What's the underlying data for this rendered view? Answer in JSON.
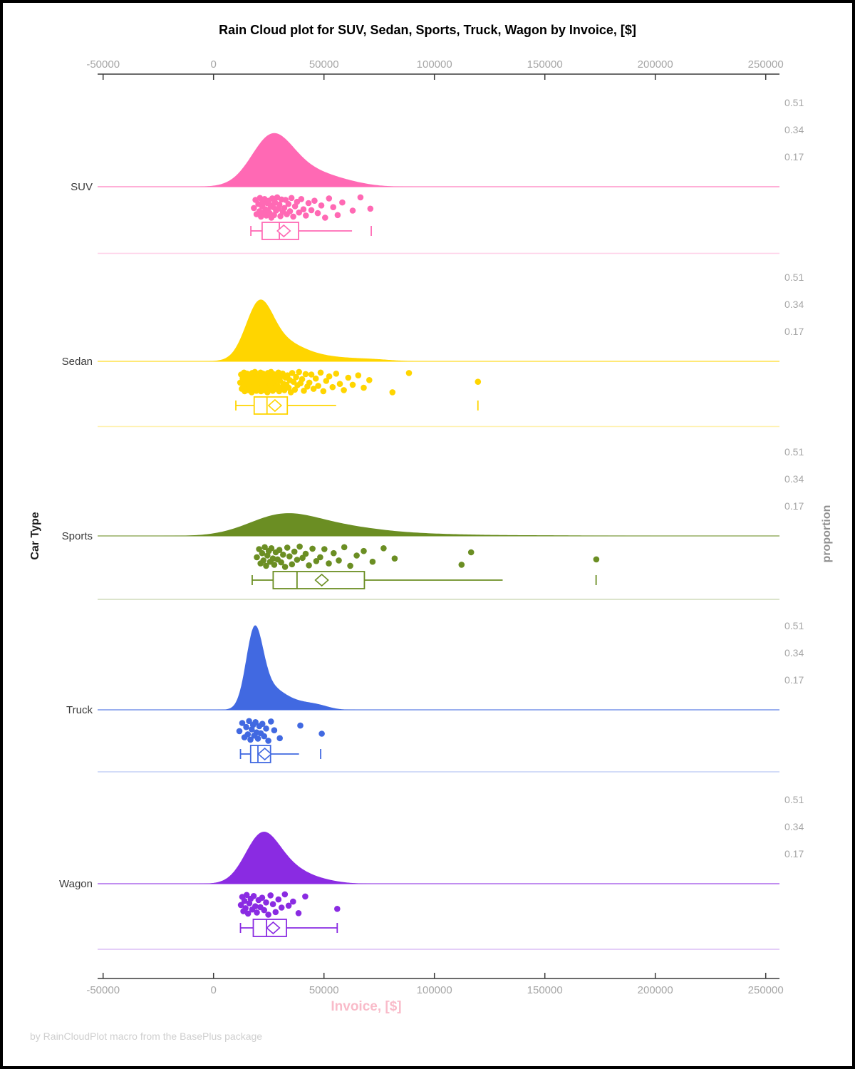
{
  "title": "Rain Cloud plot for SUV, Sedan, Sports, Truck, Wagon by Invoice, [$]",
  "footer": "by RainCloudPlot macro from the BasePlus package",
  "x_axis": {
    "label": "Invoice, [$]",
    "ticks": [
      -50000,
      0,
      50000,
      100000,
      150000,
      200000,
      250000
    ],
    "tick_labels": [
      "-50000",
      "0",
      "50000",
      "100000",
      "150000",
      "200000",
      "250000"
    ],
    "range": [
      -50000,
      250000
    ],
    "label_color": "#f9bbc9",
    "tick_label_color": "#a6a6a6",
    "axis_color": "#3a3a3a"
  },
  "y_axis": {
    "label": "Car Type",
    "categories": [
      "SUV",
      "Sedan",
      "Sports",
      "Truck",
      "Wagon"
    ],
    "label_color": "#1a1a1a",
    "category_color": "#3a3a3a"
  },
  "right_axis": {
    "label": "proportion",
    "tick_labels": [
      "0.51",
      "0.34",
      "0.17"
    ],
    "tick_values": [
      0.51,
      0.34,
      0.17
    ],
    "color": "#a6a6a6",
    "label_color": "#8f8f8f"
  },
  "jitter_cycle": [
    0.52,
    0.14,
    0.81,
    0.33,
    0.67,
    0.05,
    0.92,
    0.44,
    0.23,
    0.73,
    0.1,
    0.58,
    0.87,
    0.29,
    0.62,
    0.18,
    0.76,
    0.4,
    0.97,
    0.07,
    0.48,
    0.85,
    0.26,
    0.64,
    0.02,
    0.55,
    0.36,
    0.9,
    0.12,
    0.7
  ],
  "chart_data": {
    "type": "raincloud",
    "x_unit": "USD",
    "groups": [
      {
        "name": "SUV",
        "color": "#FF69B4",
        "density": {
          "peak_proportion": 0.33,
          "range": [
            -6000,
            94000
          ],
          "components": [
            [
              26000,
              9000,
              1.0
            ],
            [
              38000,
              14000,
              0.45
            ],
            [
              60000,
              10000,
              0.06
            ]
          ]
        },
        "box": {
          "whisker_low": 16900,
          "q1": 22000,
          "median": 29800,
          "mean": 31800,
          "q3": 38500,
          "whisker_high": 62700,
          "far_outlier": 71400,
          "right_cap": false
        },
        "points": [
          18300,
          19000,
          19500,
          20300,
          20800,
          21000,
          21500,
          22000,
          22400,
          22800,
          23100,
          23500,
          23900,
          24200,
          24600,
          25000,
          25400,
          25800,
          26200,
          26600,
          27000,
          27400,
          27800,
          28300,
          28800,
          29300,
          29800,
          30300,
          30800,
          31400,
          32000,
          32600,
          33200,
          33900,
          34600,
          35300,
          36100,
          36900,
          37800,
          38700,
          39700,
          40700,
          41800,
          43000,
          44300,
          45700,
          47200,
          48800,
          50500,
          52300,
          54200,
          56200,
          58300,
          63000,
          66500,
          71000
        ]
      },
      {
        "name": "Sedan",
        "color": "#FFD500",
        "density": {
          "peak_proportion": 0.38,
          "range": [
            -4000,
            104000
          ],
          "components": [
            [
              20500,
              6000,
              1.0
            ],
            [
              29000,
              10000,
              0.4
            ],
            [
              48000,
              13000,
              0.1
            ],
            [
              72000,
              9000,
              0.035
            ]
          ]
        },
        "box": {
          "whisker_low": 10100,
          "q1": 18400,
          "median": 24200,
          "mean": 27800,
          "q3": 33400,
          "whisker_high": 55500,
          "far_outlier": 119700,
          "right_cap": false
        },
        "points": [
          12100,
          12500,
          12800,
          13200,
          13500,
          13800,
          14100,
          14400,
          14700,
          15000,
          15200,
          15500,
          15800,
          16000,
          16300,
          16500,
          16800,
          17000,
          17300,
          17500,
          17800,
          18000,
          18200,
          18500,
          18700,
          19000,
          19200,
          19400,
          19700,
          19900,
          20100,
          20400,
          20600,
          20800,
          21000,
          21300,
          21500,
          21700,
          22000,
          22200,
          22400,
          22700,
          22900,
          23100,
          23400,
          23600,
          23900,
          24100,
          24400,
          24600,
          24900,
          25100,
          25400,
          25700,
          26000,
          26200,
          26500,
          26800,
          27100,
          27400,
          27700,
          28000,
          28400,
          28700,
          29000,
          29400,
          29700,
          30100,
          30500,
          30900,
          31300,
          31700,
          32100,
          32600,
          33000,
          33500,
          34000,
          34500,
          35000,
          35600,
          36200,
          36800,
          37400,
          38000,
          38700,
          39400,
          40100,
          40900,
          41700,
          42500,
          43400,
          44300,
          45300,
          46300,
          47400,
          48500,
          49700,
          51000,
          52400,
          53900,
          55500,
          57200,
          59000,
          61000,
          63000,
          65500,
          68000,
          70500,
          81000,
          88500,
          119700
        ]
      },
      {
        "name": "Sports",
        "color": "#6B8E23",
        "density": {
          "peak_proportion": 0.14,
          "range": [
            -24000,
            205000
          ],
          "components": [
            [
              30000,
              15000,
              1.0
            ],
            [
              52000,
              20000,
              0.55
            ],
            [
              90000,
              25000,
              0.12
            ],
            [
              150000,
              22000,
              0.03
            ]
          ]
        },
        "box": {
          "whisker_low": 17500,
          "q1": 27000,
          "median": 37800,
          "mean": 49000,
          "q3": 68300,
          "whisker_high": 130900,
          "far_outlier": 173200,
          "right_cap": false
        },
        "points": [
          19600,
          20600,
          21300,
          22000,
          22600,
          23200,
          23800,
          24400,
          25000,
          25600,
          26200,
          26900,
          27500,
          28200,
          29000,
          29800,
          30600,
          31500,
          32400,
          33400,
          34400,
          35500,
          36600,
          37800,
          39000,
          40300,
          41700,
          43200,
          44800,
          46500,
          48300,
          50200,
          52200,
          54400,
          56700,
          59200,
          61900,
          64800,
          68000,
          72000,
          77000,
          82000,
          112300,
          116600,
          173300
        ]
      },
      {
        "name": "Truck",
        "color": "#4169E1",
        "density": {
          "peak_proportion": 0.52,
          "range": [
            0,
            64000
          ],
          "components": [
            [
              18500,
              3800,
              1.0
            ],
            [
              25000,
              6500,
              0.28
            ],
            [
              38000,
              8000,
              0.1
            ],
            [
              48000,
              5000,
              0.03
            ]
          ]
        },
        "box": {
          "whisker_low": 12200,
          "q1": 16800,
          "median": 20100,
          "mean": 23200,
          "q3": 25800,
          "whisker_high": 38700,
          "far_outlier": 48500,
          "right_cap": false
        },
        "points": [
          11700,
          13000,
          14000,
          14800,
          15500,
          16100,
          16700,
          17300,
          17900,
          18400,
          19000,
          19500,
          20100,
          20700,
          21400,
          22100,
          22900,
          23800,
          24800,
          26000,
          27500,
          30000,
          39300,
          49000
        ]
      },
      {
        "name": "Wagon",
        "color": "#8A2BE2",
        "density": {
          "peak_proportion": 0.32,
          "range": [
            -8000,
            71000
          ],
          "components": [
            [
              21500,
              7500,
              1.0
            ],
            [
              32000,
              10000,
              0.4
            ],
            [
              50000,
              8000,
              0.05
            ]
          ]
        },
        "box": {
          "whisker_low": 12200,
          "q1": 18000,
          "median": 24000,
          "mean": 27000,
          "q3": 33000,
          "whisker_high": 56000,
          "far_outlier": null,
          "right_cap": true
        },
        "points": [
          12400,
          13000,
          13500,
          14000,
          14500,
          15000,
          15600,
          16200,
          16800,
          17500,
          18200,
          18900,
          19600,
          20400,
          21200,
          22000,
          22900,
          23800,
          24800,
          25800,
          26900,
          28100,
          29400,
          30800,
          32300,
          34000,
          36000,
          38500,
          41500,
          56000
        ]
      }
    ]
  }
}
